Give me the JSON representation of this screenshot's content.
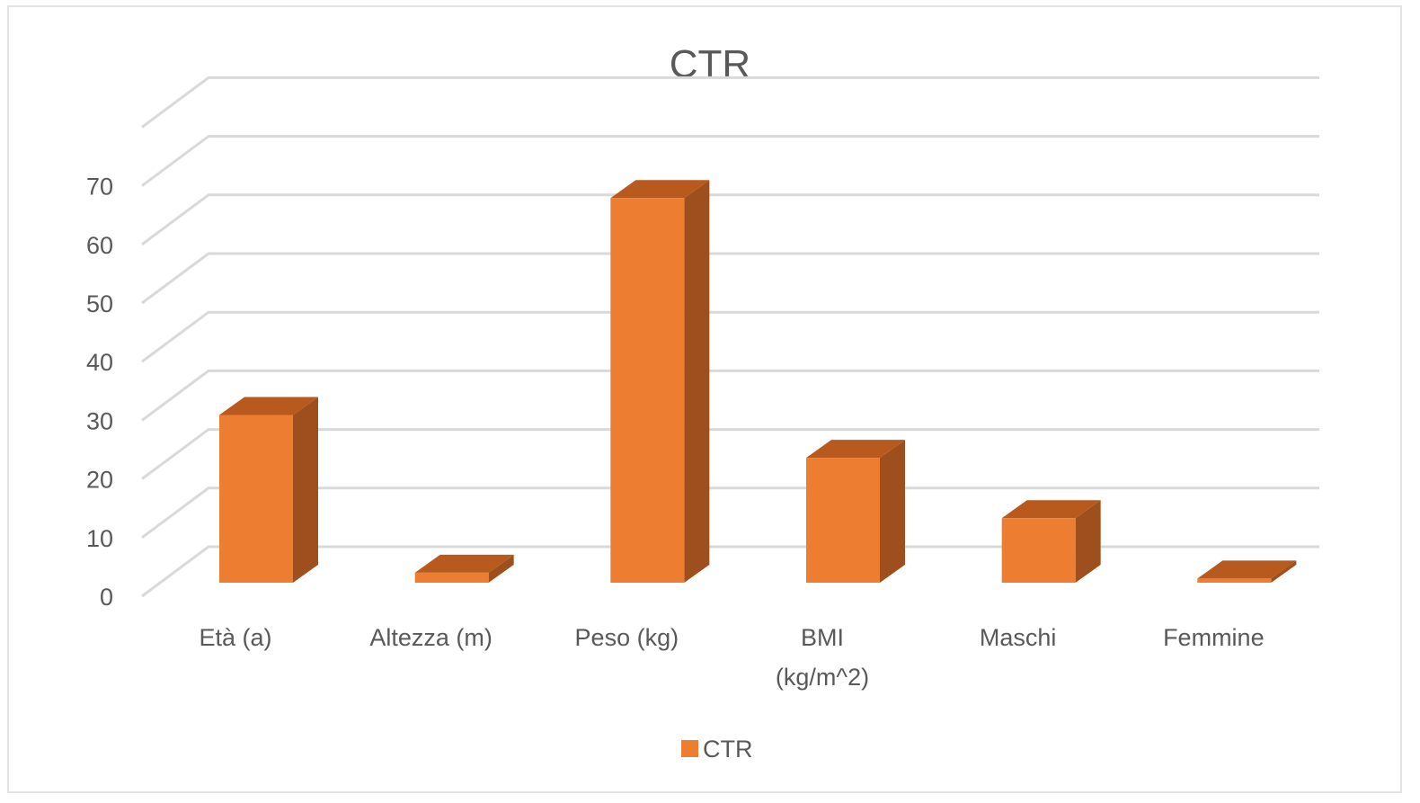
{
  "chart_data": {
    "type": "bar",
    "title": "CTR",
    "xlabel": "",
    "ylabel": "",
    "categories": [
      "Età (a)",
      "Altezza (m)",
      "Peso (kg)",
      "BMI (kg/m^2)",
      "Maschi",
      "Femmine"
    ],
    "category_lines": [
      [
        "Età (a)"
      ],
      [
        "Altezza (m)"
      ],
      [
        "Peso (kg)"
      ],
      [
        "BMI",
        "(kg/m^2)"
      ],
      [
        "Maschi"
      ],
      [
        "Femmine"
      ]
    ],
    "series": [
      {
        "name": "CTR",
        "values": [
          28.6,
          1.7,
          65.6,
          21.3,
          11,
          0.7
        ]
      }
    ],
    "yticks": [
      "0",
      "10",
      "20",
      "30",
      "40",
      "50",
      "60",
      "70"
    ],
    "ylim": [
      0,
      80
    ],
    "grid": true,
    "legend_position": "bottom",
    "style": "3d-clustered-column",
    "colors": {
      "bar_front": "#ed7d31",
      "bar_side": "#9e4f1d",
      "bar_top": "#b85a1e",
      "grid": "#d9d9d9",
      "text": "#595959"
    }
  }
}
